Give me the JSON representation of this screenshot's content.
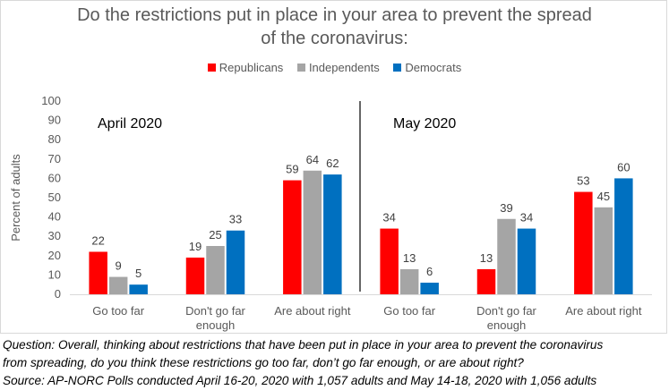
{
  "chart_data": {
    "type": "bar",
    "title": "Do the restrictions put in place in your area to prevent the spread of the coronavirus:",
    "ylabel": "Percent of adults",
    "ylim": [
      0,
      100
    ],
    "yticks": [
      0,
      10,
      20,
      30,
      40,
      50,
      60,
      70,
      80,
      90,
      100
    ],
    "grid": false,
    "legend_position": "top",
    "panels": [
      {
        "label": "April 2020",
        "categories": [
          "Go too far",
          "Don't go far enough",
          "Are about right"
        ],
        "series": [
          {
            "name": "Republicans",
            "values": [
              22,
              19,
              59
            ]
          },
          {
            "name": "Independents",
            "values": [
              9,
              25,
              64
            ]
          },
          {
            "name": "Democrats",
            "values": [
              5,
              33,
              62
            ]
          }
        ]
      },
      {
        "label": "May 2020",
        "categories": [
          "Go too far",
          "Don't go far enough",
          "Are about right"
        ],
        "series": [
          {
            "name": "Republicans",
            "values": [
              34,
              13,
              53
            ]
          },
          {
            "name": "Independents",
            "values": [
              13,
              39,
              45
            ]
          },
          {
            "name": "Democrats",
            "values": [
              6,
              34,
              60
            ]
          }
        ]
      }
    ]
  },
  "title_lines": [
    "Do the restrictions put in place in your area to prevent the spread",
    "of the coronavirus:"
  ],
  "legend": [
    {
      "name": "Republicans",
      "color": "#ff0000"
    },
    {
      "name": "Independents",
      "color": "#a5a5a5"
    },
    {
      "name": "Democrats",
      "color": "#0070c0"
    }
  ],
  "category_label_lines": [
    [
      "Go too far"
    ],
    [
      "Don't go far",
      "enough"
    ],
    [
      "Are about right"
    ]
  ],
  "caption": [
    "Question: Overall, thinking about restrictions that have been put in place in your area to prevent the coronavirus",
    "from spreading, do you think these restrictions go too far, don’t go far enough, or are about right?",
    "Source: AP-NORC Polls conducted April 16-20, 2020 with 1,057 adults and May 14-18, 2020 with 1,056 adults"
  ]
}
